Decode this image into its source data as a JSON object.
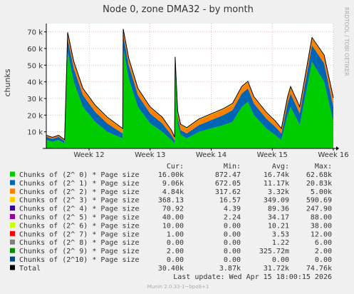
{
  "header": {
    "title": "Node 0, zone DMA32 - by month",
    "side_label": "RRDTOOL / TOBI OETIKER"
  },
  "footer": {
    "last_update": "Last update: Wed Apr 15 18:00:15 2026",
    "generator": "Munin 2.0.33-1~bpo8+1"
  },
  "legend": {
    "headers": [
      "Cur:",
      "Min:",
      "Avg:",
      "Max:"
    ],
    "rows": [
      {
        "label": "Chunks of (2^ 0) * Page size",
        "color": "#00cc00",
        "cur": "16.00k",
        "min": "872.47",
        "avg": "16.74k",
        "max": "62.68k"
      },
      {
        "label": "Chunks of (2^ 1) * Page size",
        "color": "#0066b3",
        "cur": "9.06k",
        "min": "672.05",
        "avg": "11.17k",
        "max": "20.83k"
      },
      {
        "label": "Chunks of (2^ 2) * Page size",
        "color": "#ff8000",
        "cur": "4.84k",
        "min": "317.62",
        "avg": "3.32k",
        "max": "5.00k"
      },
      {
        "label": "Chunks of (2^ 3) * Page size",
        "color": "#ffcc00",
        "cur": "368.13",
        "min": "16.57",
        "avg": "349.09",
        "max": "590.69"
      },
      {
        "label": "Chunks of (2^ 4) * Page size",
        "color": "#330099",
        "cur": "70.92",
        "min": "4.39",
        "avg": "89.36",
        "max": "247.90"
      },
      {
        "label": "Chunks of (2^ 5) * Page size",
        "color": "#990099",
        "cur": "40.00",
        "min": "2.24",
        "avg": "34.17",
        "max": "88.00"
      },
      {
        "label": "Chunks of (2^ 6) * Page size",
        "color": "#ccff00",
        "cur": "10.00",
        "min": "0.00",
        "avg": "10.21",
        "max": "38.00"
      },
      {
        "label": "Chunks of (2^ 7) * Page size",
        "color": "#ff0000",
        "cur": "1.00",
        "min": "0.00",
        "avg": "3.53",
        "max": "12.00"
      },
      {
        "label": "Chunks of (2^ 8) * Page size",
        "color": "#808080",
        "cur": "0.00",
        "min": "0.00",
        "avg": "1.22",
        "max": "6.00"
      },
      {
        "label": "Chunks of (2^ 9) * Page size",
        "color": "#008f00",
        "cur": "2.00",
        "min": "0.00",
        "avg": "325.72m",
        "max": "2.00"
      },
      {
        "label": "Chunks of (2^10) * Page size",
        "color": "#00487d",
        "cur": "0.00",
        "min": "0.00",
        "avg": "0.00",
        "max": "0.00"
      },
      {
        "label": "Total",
        "color": "#000000",
        "cur": "30.40k",
        "min": "3.87k",
        "avg": "31.72k",
        "max": "74.76k"
      }
    ]
  },
  "chart_data": {
    "type": "area",
    "title": "Node 0, zone DMA32 - by month",
    "ylabel": "chunks",
    "xlabel": "",
    "ylim": [
      0,
      75000
    ],
    "y_ticks": [
      "10 k",
      "20 k",
      "30 k",
      "40 k",
      "50 k",
      "60 k",
      "70 k"
    ],
    "y_tick_values": [
      10000,
      20000,
      30000,
      40000,
      50000,
      60000,
      70000
    ],
    "x_ticks": [
      "Week 12",
      "Week 13",
      "Week 14",
      "Week 15",
      "Week 16"
    ],
    "x_tick_values": [
      12,
      13,
      14,
      15,
      16
    ],
    "xlim": [
      11.3,
      16.0
    ],
    "grid": true,
    "stacked": true,
    "x": [
      11.3,
      11.4,
      11.5,
      11.55,
      11.6,
      11.65,
      11.75,
      11.9,
      12.1,
      12.3,
      12.55,
      12.56,
      12.65,
      12.8,
      13.0,
      13.2,
      13.35,
      13.4,
      13.41,
      13.45,
      13.5,
      13.6,
      13.8,
      14.0,
      14.2,
      14.35,
      14.5,
      14.6,
      14.7,
      14.9,
      15.05,
      15.15,
      15.25,
      15.3,
      15.45,
      15.65,
      15.85,
      16.0
    ],
    "series": [
      {
        "name": "Chunks of (2^ 0) * Page size",
        "values": [
          5000,
          4000,
          5000,
          4000,
          3000,
          58000,
          40000,
          25000,
          16000,
          10000,
          6000,
          60000,
          42000,
          25000,
          15000,
          10000,
          5000,
          3000,
          48000,
          15000,
          8000,
          6000,
          10000,
          12000,
          14000,
          16000,
          25000,
          28000,
          20000,
          12000,
          8000,
          5000,
          20000,
          25000,
          14000,
          52000,
          40000,
          16000
        ]
      },
      {
        "name": "Chunks of (2^ 1) * Page size",
        "values": [
          2000,
          1800,
          2000,
          1800,
          1500,
          8000,
          8000,
          7000,
          6000,
          5000,
          3000,
          8000,
          8000,
          7000,
          6000,
          5000,
          3000,
          2000,
          4000,
          4000,
          3000,
          3000,
          4000,
          5000,
          6000,
          7000,
          8000,
          8000,
          7000,
          6000,
          5000,
          4000,
          7000,
          8000,
          7000,
          10000,
          11000,
          9060
        ]
      },
      {
        "name": "Chunks of (2^ 2) * Page size",
        "values": [
          800,
          700,
          800,
          700,
          600,
          3000,
          3500,
          3500,
          3400,
          3200,
          2500,
          3000,
          3400,
          3500,
          3400,
          3300,
          2500,
          1500,
          2500,
          3000,
          3000,
          3000,
          3200,
          3300,
          3400,
          3500,
          3600,
          3700,
          3500,
          3300,
          3000,
          2600,
          3400,
          3600,
          3500,
          4000,
          4500,
          4840
        ]
      },
      {
        "name": "Chunks of (2^ 3) * Page size",
        "values": [
          100,
          100,
          100,
          100,
          80,
          400,
          450,
          420,
          400,
          380,
          300,
          420,
          420,
          400,
          380,
          360,
          300,
          200,
          350,
          380,
          360,
          350,
          360,
          380,
          390,
          400,
          420,
          430,
          410,
          380,
          350,
          300,
          380,
          400,
          390,
          420,
          400,
          368
        ]
      },
      {
        "name": "Chunks of (2^ 4) * Page size",
        "values": [
          30,
          30,
          30,
          30,
          20,
          200,
          150,
          120,
          100,
          90,
          70,
          200,
          150,
          110,
          100,
          90,
          70,
          40,
          100,
          90,
          85,
          80,
          85,
          90,
          95,
          100,
          110,
          115,
          105,
          95,
          85,
          75,
          95,
          100,
          95,
          110,
          100,
          71
        ]
      },
      {
        "name": "Chunks of (2^ 5) * Page size",
        "values": [
          10,
          10,
          10,
          10,
          8,
          70,
          60,
          45,
          40,
          35,
          25,
          70,
          55,
          40,
          35,
          30,
          25,
          15,
          40,
          35,
          32,
          30,
          32,
          35,
          36,
          38,
          42,
          44,
          40,
          36,
          32,
          28,
          36,
          40,
          36,
          44,
          42,
          40
        ]
      },
      {
        "name": "Chunks of (2^ 6) * Page size",
        "values": [
          3,
          3,
          3,
          3,
          2,
          30,
          20,
          12,
          10,
          9,
          6,
          30,
          20,
          12,
          10,
          8,
          6,
          4,
          12,
          10,
          9,
          9,
          9,
          10,
          10,
          11,
          12,
          13,
          11,
          10,
          9,
          8,
          10,
          11,
          10,
          12,
          11,
          10
        ]
      },
      {
        "name": "Chunks of (2^ 7) * Page size",
        "values": [
          1,
          1,
          1,
          1,
          0,
          10,
          6,
          4,
          3,
          3,
          2,
          10,
          6,
          4,
          3,
          3,
          2,
          1,
          4,
          3,
          3,
          3,
          3,
          3,
          3,
          4,
          4,
          4,
          4,
          3,
          3,
          2,
          3,
          4,
          3,
          4,
          3,
          1
        ]
      },
      {
        "name": "Chunks of (2^ 8) * Page size",
        "values": [
          0,
          0,
          0,
          0,
          0,
          5,
          3,
          2,
          1,
          1,
          1,
          5,
          2,
          1,
          1,
          1,
          1,
          0,
          1,
          1,
          1,
          1,
          1,
          1,
          1,
          1,
          1,
          1,
          1,
          1,
          1,
          1,
          1,
          1,
          1,
          1,
          1,
          0
        ]
      },
      {
        "name": "Chunks of (2^ 9) * Page size",
        "values": [
          0,
          0,
          0,
          0,
          0,
          2,
          1,
          1,
          0,
          0,
          0,
          2,
          1,
          0,
          0,
          0,
          0,
          0,
          1,
          0,
          0,
          0,
          0,
          0,
          0,
          0,
          0,
          0,
          0,
          0,
          0,
          0,
          0,
          0,
          0,
          0,
          0,
          2
        ]
      },
      {
        "name": "Chunks of (2^10) * Page size",
        "values": [
          0,
          0,
          0,
          0,
          0,
          0,
          0,
          0,
          0,
          0,
          0,
          0,
          0,
          0,
          0,
          0,
          0,
          0,
          0,
          0,
          0,
          0,
          0,
          0,
          0,
          0,
          0,
          0,
          0,
          0,
          0,
          0,
          0,
          0,
          0,
          0,
          0,
          0
        ]
      }
    ]
  }
}
